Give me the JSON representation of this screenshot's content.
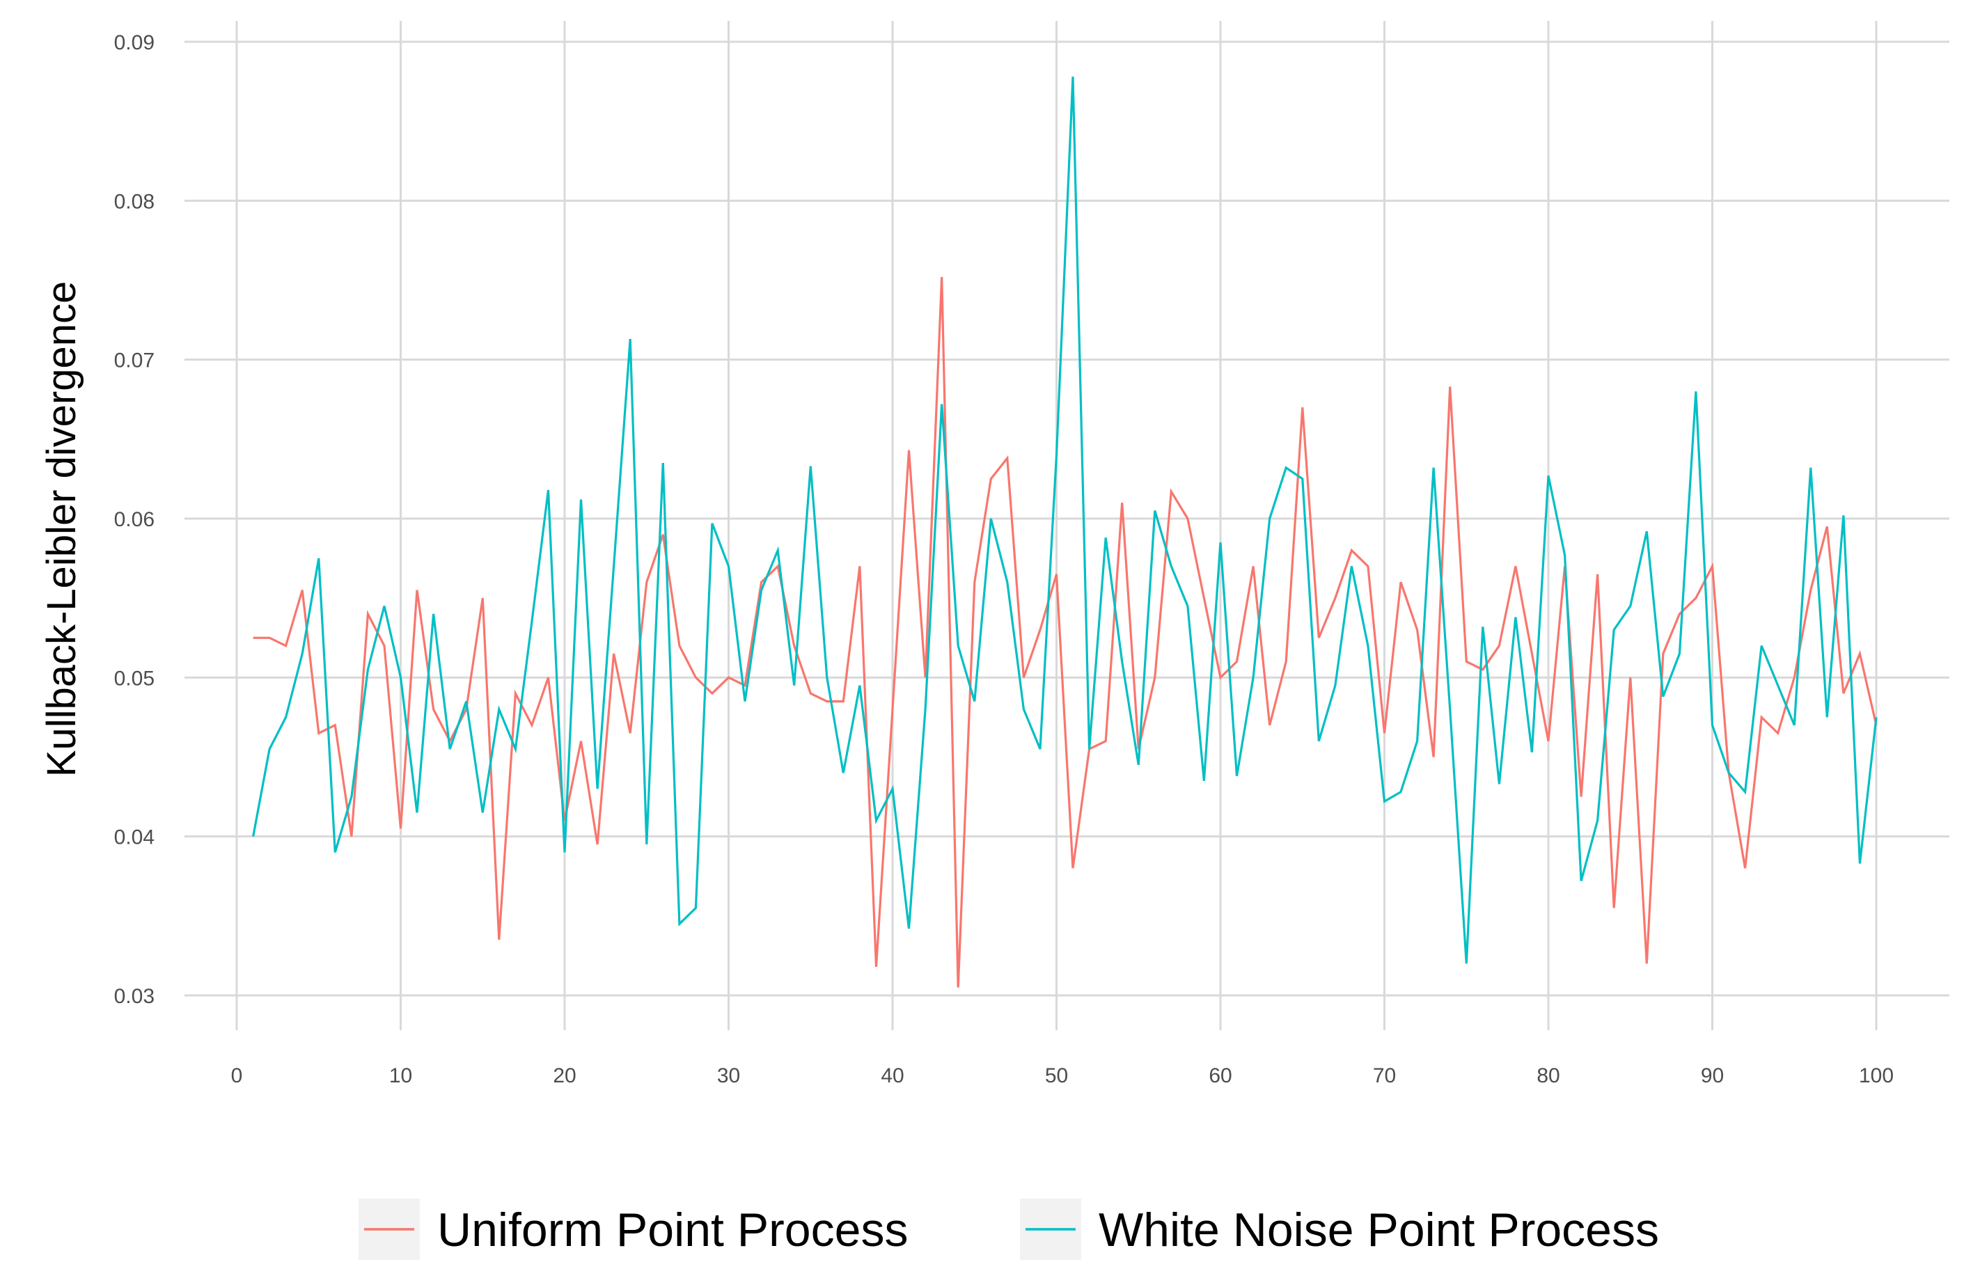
{
  "chart_data": {
    "type": "line",
    "title": "",
    "xlabel": "",
    "ylabel": "Kullback-Leibler divergence",
    "xlim": [
      0,
      100
    ],
    "ylim": [
      0.03,
      0.09
    ],
    "xticks": [
      0,
      10,
      20,
      30,
      40,
      50,
      60,
      70,
      80,
      90,
      100
    ],
    "xtick_labels": [
      "0",
      "10",
      "20",
      "30",
      "40",
      "50",
      "60",
      "70",
      "80",
      "90",
      "100"
    ],
    "yticks": [
      0.03,
      0.04,
      0.05,
      0.06,
      0.07,
      0.08,
      0.09
    ],
    "ytick_labels": [
      "0.03",
      "0.04",
      "0.05",
      "0.06",
      "0.07",
      "0.08",
      "0.09"
    ],
    "grid": true,
    "legend_position": "bottom",
    "x": [
      1,
      2,
      3,
      4,
      5,
      6,
      7,
      8,
      9,
      10,
      11,
      12,
      13,
      14,
      15,
      16,
      17,
      18,
      19,
      20,
      21,
      22,
      23,
      24,
      25,
      26,
      27,
      28,
      29,
      30,
      31,
      32,
      33,
      34,
      35,
      36,
      37,
      38,
      39,
      40,
      41,
      42,
      43,
      44,
      45,
      46,
      47,
      48,
      49,
      50,
      51,
      52,
      53,
      54,
      55,
      56,
      57,
      58,
      59,
      60,
      61,
      62,
      63,
      64,
      65,
      66,
      67,
      68,
      69,
      70,
      71,
      72,
      73,
      74,
      75,
      76,
      77,
      78,
      79,
      80,
      81,
      82,
      83,
      84,
      85,
      86,
      87,
      88,
      89,
      90,
      91,
      92,
      93,
      94,
      95,
      96,
      97,
      98,
      99,
      100
    ],
    "series": [
      {
        "name": "Uniform Point Process",
        "color": "#f8766d",
        "values": [
          0.0525,
          0.0525,
          0.052,
          0.0555,
          0.0465,
          0.047,
          0.04,
          0.054,
          0.052,
          0.0405,
          0.0555,
          0.048,
          0.046,
          0.048,
          0.055,
          0.0335,
          0.049,
          0.047,
          0.05,
          0.041,
          0.046,
          0.0395,
          0.0515,
          0.0465,
          0.056,
          0.059,
          0.052,
          0.05,
          0.049,
          0.05,
          0.0495,
          0.056,
          0.057,
          0.052,
          0.049,
          0.0485,
          0.0485,
          0.057,
          0.0318,
          0.048,
          0.0643,
          0.05,
          0.0752,
          0.0305,
          0.056,
          0.0625,
          0.0638,
          0.05,
          0.053,
          0.0565,
          0.038,
          0.0455,
          0.046,
          0.061,
          0.0455,
          0.05,
          0.0617,
          0.06,
          0.055,
          0.05,
          0.051,
          0.057,
          0.047,
          0.051,
          0.067,
          0.0525,
          0.055,
          0.058,
          0.057,
          0.0465,
          0.056,
          0.053,
          0.045,
          0.0683,
          0.051,
          0.0505,
          0.052,
          0.057,
          0.0515,
          0.046,
          0.057,
          0.0425,
          0.0565,
          0.0355,
          0.05,
          0.032,
          0.0515,
          0.054,
          0.055,
          0.057,
          0.044,
          0.038,
          0.0475,
          0.0465,
          0.05,
          0.0555,
          0.0595,
          0.049,
          0.0515,
          0.047
        ]
      },
      {
        "name": "White Noise Point Process",
        "color": "#00bfc4",
        "values": [
          0.04,
          0.0455,
          0.0475,
          0.0515,
          0.0575,
          0.039,
          0.0425,
          0.0505,
          0.0545,
          0.05,
          0.0415,
          0.054,
          0.0455,
          0.0485,
          0.0415,
          0.048,
          0.0455,
          0.0535,
          0.0618,
          0.039,
          0.0612,
          0.043,
          0.057,
          0.0713,
          0.0395,
          0.0635,
          0.0345,
          0.0355,
          0.0597,
          0.057,
          0.0485,
          0.0555,
          0.058,
          0.0495,
          0.0633,
          0.05,
          0.044,
          0.0495,
          0.041,
          0.043,
          0.0342,
          0.048,
          0.0672,
          0.052,
          0.0485,
          0.06,
          0.056,
          0.048,
          0.0455,
          0.064,
          0.0878,
          0.0455,
          0.0588,
          0.051,
          0.0445,
          0.0605,
          0.057,
          0.0545,
          0.0435,
          0.0585,
          0.0438,
          0.05,
          0.06,
          0.0632,
          0.0625,
          0.046,
          0.0495,
          0.057,
          0.052,
          0.0422,
          0.0428,
          0.046,
          0.0632,
          0.048,
          0.032,
          0.0532,
          0.0433,
          0.0538,
          0.0453,
          0.0627,
          0.0577,
          0.0372,
          0.041,
          0.053,
          0.0545,
          0.0592,
          0.0488,
          0.0515,
          0.068,
          0.047,
          0.044,
          0.0428,
          0.052,
          0.0495,
          0.047,
          0.0632,
          0.0475,
          0.0602,
          0.0383,
          0.0475
        ]
      }
    ]
  }
}
